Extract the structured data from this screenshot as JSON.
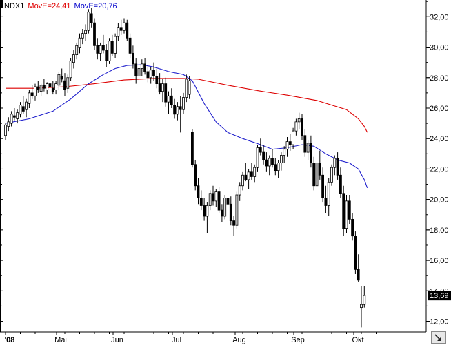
{
  "legend": {
    "symbol": "NDX1",
    "ma_slow": "MovE=24,41",
    "ma_fast": "MovE=20,76"
  },
  "colors": {
    "candle": "#000000",
    "ma_slow": "#dd0000",
    "ma_fast": "#1f1fcc",
    "last_price_bg": "#000000",
    "axis": "#000000",
    "background": "#ffffff"
  },
  "chart_data": {
    "type": "candlestick",
    "title": "",
    "ylim": [
      11.3,
      33.1
    ],
    "y_ticks": [
      12,
      14,
      16,
      18,
      20,
      22,
      24,
      26,
      28,
      30,
      32
    ],
    "y_tick_labels": [
      "12,00",
      "14,00",
      "16,00",
      "18,00",
      "20,00",
      "22,00",
      "24,00",
      "26,00",
      "28,00",
      "30,00",
      "32,00"
    ],
    "x_labels": [
      "'08",
      "Mai",
      "Jun",
      "Jul",
      "Aug",
      "Sep",
      "Okt"
    ],
    "last_price_label": "13,69",
    "last_price": 13.69,
    "candles": [
      [
        24.2,
        25.0,
        23.9,
        24.9
      ],
      [
        24.8,
        25.4,
        24.5,
        25.1
      ],
      [
        25.0,
        25.8,
        24.8,
        25.6
      ],
      [
        25.5,
        26.0,
        25.2,
        25.4
      ],
      [
        25.3,
        25.9,
        25.0,
        25.7
      ],
      [
        25.6,
        26.4,
        25.4,
        26.2
      ],
      [
        26.1,
        26.8,
        25.6,
        25.8
      ],
      [
        25.9,
        26.6,
        25.4,
        26.4
      ],
      [
        26.3,
        27.2,
        26.0,
        27.0
      ],
      [
        27.0,
        27.5,
        26.6,
        26.8
      ],
      [
        26.8,
        27.6,
        26.5,
        27.4
      ],
      [
        27.4,
        27.8,
        27.0,
        27.2
      ],
      [
        27.1,
        27.6,
        26.8,
        27.5
      ],
      [
        27.5,
        27.9,
        27.1,
        27.3
      ],
      [
        27.2,
        27.7,
        26.9,
        27.6
      ],
      [
        27.6,
        28.0,
        27.2,
        27.4
      ],
      [
        27.3,
        27.8,
        26.9,
        27.1
      ],
      [
        27.2,
        27.8,
        26.9,
        27.6
      ],
      [
        27.5,
        28.4,
        27.2,
        28.2
      ],
      [
        28.1,
        28.6,
        27.7,
        27.9
      ],
      [
        27.8,
        28.3,
        26.8,
        27.2
      ],
      [
        27.3,
        28.2,
        27.0,
        28.0
      ],
      [
        28.0,
        29.3,
        27.8,
        29.1
      ],
      [
        29.0,
        29.8,
        28.6,
        29.5
      ],
      [
        29.5,
        30.3,
        29.2,
        30.1
      ],
      [
        30.0,
        30.9,
        29.6,
        30.6
      ],
      [
        30.6,
        31.2,
        30.2,
        30.9
      ],
      [
        30.9,
        31.5,
        30.4,
        31.1
      ],
      [
        31.1,
        32.5,
        30.9,
        32.3
      ],
      [
        32.2,
        32.6,
        31.3,
        31.6
      ],
      [
        31.6,
        31.9,
        29.8,
        30.1
      ],
      [
        30.1,
        30.6,
        29.2,
        29.6
      ],
      [
        29.6,
        30.3,
        29.1,
        30.1
      ],
      [
        30.1,
        30.8,
        29.6,
        29.8
      ],
      [
        29.8,
        30.2,
        28.7,
        29.1
      ],
      [
        29.1,
        30.6,
        28.9,
        30.4
      ],
      [
        30.4,
        30.8,
        29.4,
        29.6
      ],
      [
        29.6,
        30.9,
        29.3,
        30.7
      ],
      [
        30.7,
        31.6,
        30.4,
        31.3
      ],
      [
        31.3,
        31.8,
        30.8,
        31.1
      ],
      [
        31.1,
        31.9,
        30.9,
        31.6
      ],
      [
        31.6,
        31.8,
        30.4,
        30.6
      ],
      [
        30.6,
        30.9,
        29.3,
        29.6
      ],
      [
        29.6,
        30.1,
        28.6,
        28.9
      ],
      [
        28.9,
        29.3,
        27.6,
        28.1
      ],
      [
        28.1,
        28.9,
        27.6,
        28.6
      ],
      [
        28.6,
        29.2,
        28.1,
        28.9
      ],
      [
        28.9,
        29.3,
        28.2,
        28.4
      ],
      [
        28.4,
        28.8,
        27.7,
        28.0
      ],
      [
        28.0,
        28.7,
        27.6,
        28.5
      ],
      [
        28.5,
        29.0,
        27.8,
        28.1
      ],
      [
        28.1,
        28.6,
        27.3,
        27.6
      ],
      [
        27.6,
        28.3,
        26.9,
        27.1
      ],
      [
        27.1,
        27.9,
        26.4,
        27.6
      ],
      [
        27.6,
        28.0,
        26.1,
        26.4
      ],
      [
        26.4,
        27.1,
        25.6,
        26.8
      ],
      [
        26.8,
        27.3,
        26.0,
        26.2
      ],
      [
        26.2,
        26.6,
        25.3,
        25.6
      ],
      [
        25.6,
        26.4,
        25.2,
        26.1
      ],
      [
        26.1,
        26.8,
        24.4,
        25.9
      ],
      [
        25.9,
        27.0,
        25.6,
        26.7
      ],
      [
        26.7,
        28.2,
        26.4,
        27.9
      ],
      [
        26.9,
        28.1,
        26.6,
        27.8
      ],
      [
        24.4,
        24.6,
        22.1,
        22.3
      ],
      [
        22.3,
        22.6,
        20.6,
        20.9
      ],
      [
        20.9,
        21.4,
        19.7,
        20.1
      ],
      [
        20.1,
        20.6,
        19.3,
        19.6
      ],
      [
        19.6,
        20.1,
        18.6,
        18.9
      ],
      [
        18.9,
        19.8,
        17.8,
        19.6
      ],
      [
        19.6,
        20.6,
        19.3,
        20.4
      ],
      [
        20.4,
        20.9,
        19.6,
        19.9
      ],
      [
        19.9,
        20.7,
        19.5,
        20.5
      ],
      [
        20.5,
        20.8,
        19.1,
        19.3
      ],
      [
        19.3,
        19.7,
        18.5,
        18.9
      ],
      [
        18.9,
        20.3,
        18.7,
        20.1
      ],
      [
        20.1,
        20.8,
        19.4,
        19.7
      ],
      [
        19.7,
        20.2,
        18.3,
        18.6
      ],
      [
        18.6,
        18.9,
        17.6,
        18.3
      ],
      [
        18.3,
        20.5,
        18.1,
        20.3
      ],
      [
        20.3,
        21.1,
        19.9,
        20.9
      ],
      [
        20.9,
        21.8,
        20.6,
        21.6
      ],
      [
        21.6,
        22.4,
        21.2,
        21.3
      ],
      [
        21.3,
        22.0,
        20.7,
        21.8
      ],
      [
        21.8,
        22.4,
        21.3,
        21.5
      ],
      [
        21.5,
        22.3,
        21.1,
        22.1
      ],
      [
        22.1,
        23.6,
        21.8,
        23.4
      ],
      [
        23.4,
        24.0,
        22.9,
        23.1
      ],
      [
        23.1,
        23.6,
        22.3,
        22.6
      ],
      [
        22.6,
        23.1,
        21.8,
        22.2
      ],
      [
        22.2,
        22.9,
        21.6,
        22.7
      ],
      [
        22.7,
        23.3,
        22.1,
        22.3
      ],
      [
        22.3,
        22.7,
        21.6,
        21.9
      ],
      [
        21.9,
        22.6,
        21.4,
        22.4
      ],
      [
        22.4,
        23.1,
        21.9,
        22.9
      ],
      [
        22.9,
        23.5,
        22.4,
        23.3
      ],
      [
        23.3,
        24.1,
        22.8,
        23.8
      ],
      [
        23.8,
        24.3,
        23.2,
        23.6
      ],
      [
        23.6,
        24.7,
        23.3,
        24.5
      ],
      [
        24.5,
        25.3,
        24.2,
        25.1
      ],
      [
        25.1,
        25.7,
        24.6,
        25.3
      ],
      [
        25.3,
        25.6,
        23.9,
        24.2
      ],
      [
        24.2,
        24.6,
        22.8,
        23.1
      ],
      [
        23.1,
        23.9,
        22.6,
        23.7
      ],
      [
        23.7,
        24.2,
        22.1,
        22.4
      ],
      [
        22.4,
        22.8,
        20.6,
        20.9
      ],
      [
        20.9,
        22.6,
        20.6,
        22.4
      ],
      [
        22.4,
        23.2,
        21.3,
        21.6
      ],
      [
        21.6,
        22.1,
        19.8,
        20.1
      ],
      [
        20.1,
        20.9,
        19.1,
        19.6
      ],
      [
        19.6,
        21.4,
        18.9,
        21.1
      ],
      [
        21.1,
        22.3,
        20.9,
        22.1
      ],
      [
        22.1,
        22.9,
        21.6,
        22.7
      ],
      [
        22.7,
        23.1,
        21.3,
        21.6
      ],
      [
        21.6,
        22.1,
        20.1,
        20.4
      ],
      [
        20.4,
        20.9,
        17.6,
        18.1
      ],
      [
        18.1,
        20.3,
        17.8,
        19.9
      ],
      [
        19.9,
        20.3,
        18.4,
        18.7
      ],
      [
        18.7,
        19.1,
        17.3,
        17.6
      ],
      [
        17.6,
        17.9,
        15.1,
        15.4
      ],
      [
        15.4,
        16.4,
        14.6,
        14.7
      ],
      [
        12.9,
        14.3,
        11.6,
        13.1
      ],
      [
        13.1,
        14.3,
        12.9,
        13.69
      ]
    ],
    "ma_slow_points": [
      [
        0,
        27.3
      ],
      [
        10,
        27.3
      ],
      [
        20,
        27.4
      ],
      [
        30,
        27.6
      ],
      [
        40,
        27.85
      ],
      [
        50,
        27.95
      ],
      [
        60,
        27.95
      ],
      [
        65,
        27.9
      ],
      [
        75,
        27.5
      ],
      [
        85,
        27.15
      ],
      [
        95,
        26.85
      ],
      [
        105,
        26.5
      ],
      [
        110,
        26.2
      ],
      [
        115,
        25.9
      ],
      [
        119,
        25.3
      ],
      [
        121,
        24.8
      ],
      [
        122,
        24.41
      ]
    ],
    "ma_fast_points": [
      [
        0,
        25.0
      ],
      [
        8,
        25.3
      ],
      [
        16,
        25.8
      ],
      [
        22,
        26.6
      ],
      [
        28,
        27.6
      ],
      [
        33,
        28.2
      ],
      [
        37,
        28.6
      ],
      [
        41,
        28.8
      ],
      [
        46,
        28.85
      ],
      [
        50,
        28.7
      ],
      [
        55,
        28.4
      ],
      [
        60,
        28.2
      ],
      [
        63,
        27.8
      ],
      [
        67,
        26.3
      ],
      [
        71,
        25.1
      ],
      [
        75,
        24.4
      ],
      [
        80,
        24.0
      ],
      [
        86,
        23.6
      ],
      [
        90,
        23.3
      ],
      [
        95,
        23.4
      ],
      [
        100,
        23.6
      ],
      [
        104,
        23.5
      ],
      [
        108,
        23.0
      ],
      [
        112,
        22.6
      ],
      [
        116,
        22.4
      ],
      [
        119,
        22.0
      ],
      [
        121,
        21.3
      ],
      [
        122,
        20.76
      ]
    ]
  }
}
